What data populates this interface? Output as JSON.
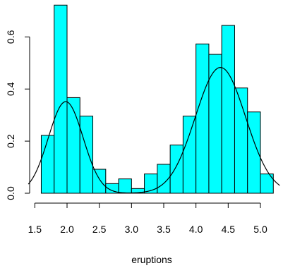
{
  "chart_data": {
    "type": "bar",
    "title": "",
    "xlabel": "eruptions",
    "ylabel": "",
    "bin_width": 0.2,
    "bins": [
      {
        "start": 1.6,
        "end": 1.8,
        "density": 0.222
      },
      {
        "start": 1.8,
        "end": 2.0,
        "density": 0.722
      },
      {
        "start": 2.0,
        "end": 2.2,
        "density": 0.367
      },
      {
        "start": 2.2,
        "end": 2.4,
        "density": 0.296
      },
      {
        "start": 2.4,
        "end": 2.6,
        "density": 0.092
      },
      {
        "start": 2.6,
        "end": 2.8,
        "density": 0.037
      },
      {
        "start": 2.8,
        "end": 3.0,
        "density": 0.055
      },
      {
        "start": 3.0,
        "end": 3.2,
        "density": 0.018
      },
      {
        "start": 3.2,
        "end": 3.4,
        "density": 0.074
      },
      {
        "start": 3.4,
        "end": 3.6,
        "density": 0.111
      },
      {
        "start": 3.6,
        "end": 3.8,
        "density": 0.185
      },
      {
        "start": 3.8,
        "end": 4.0,
        "density": 0.296
      },
      {
        "start": 4.0,
        "end": 4.2,
        "density": 0.573
      },
      {
        "start": 4.2,
        "end": 4.4,
        "density": 0.533
      },
      {
        "start": 4.4,
        "end": 4.6,
        "density": 0.644
      },
      {
        "start": 4.6,
        "end": 4.8,
        "density": 0.404
      },
      {
        "start": 4.8,
        "end": 5.0,
        "density": 0.312
      },
      {
        "start": 5.0,
        "end": 5.2,
        "density": 0.074
      }
    ],
    "density_curve": {
      "components": [
        {
          "mean": 1.98,
          "sd": 0.27,
          "weight": 0.238
        },
        {
          "mean": 4.38,
          "sd": 0.39,
          "weight": 0.472
        }
      ]
    },
    "x_ticks": [
      "1.5",
      "2.0",
      "2.5",
      "3.0",
      "3.5",
      "4.0",
      "4.5",
      "5.0"
    ],
    "y_ticks": [
      "0.0",
      "0.2",
      "0.4",
      "0.6"
    ],
    "xlim": [
      1.4,
      5.3
    ],
    "ylim": [
      0,
      0.72
    ],
    "bar_color": "#00ffff",
    "grid": false,
    "legend": "none"
  }
}
